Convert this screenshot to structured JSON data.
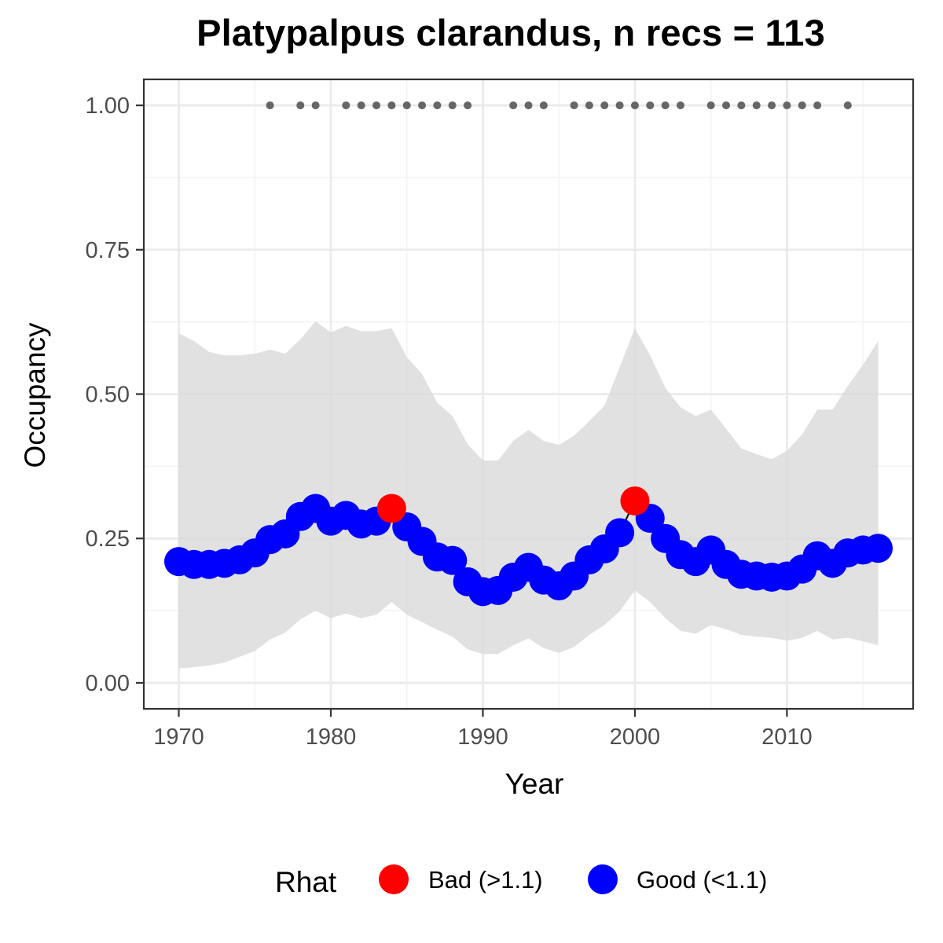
{
  "chart_data": {
    "type": "line",
    "title": "Platypalpus clarandus, n recs = 113",
    "xlabel": "Year",
    "ylabel": "Occupancy",
    "xlim": [
      1967.7,
      2018.3
    ],
    "ylim": [
      -0.045,
      1.045
    ],
    "x_ticks": [
      1970,
      1980,
      1990,
      2000,
      2010
    ],
    "x_tick_labels": [
      "1970",
      "1980",
      "1990",
      "2000",
      "2010"
    ],
    "y_ticks": [
      0,
      0.25,
      0.5,
      0.75,
      1.0
    ],
    "y_tick_labels": [
      "0.00",
      "0.25",
      "0.50",
      "0.75",
      "1.00"
    ],
    "grid": true,
    "legend_position": "bottom",
    "legend": {
      "title": "Rhat",
      "entries": [
        {
          "label": "Bad (>1.1)",
          "color": "#ff0000"
        },
        {
          "label": "Good (<1.1)",
          "color": "#0000ff"
        }
      ]
    },
    "colors": {
      "bad": "#ff0000",
      "good": "#0000ff",
      "ribbon": "#d9d9d9",
      "records": "#666666"
    },
    "years": [
      1970,
      1971,
      1972,
      1973,
      1974,
      1975,
      1976,
      1977,
      1978,
      1979,
      1980,
      1981,
      1982,
      1983,
      1984,
      1985,
      1986,
      1987,
      1988,
      1989,
      1990,
      1991,
      1992,
      1993,
      1994,
      1995,
      1996,
      1997,
      1998,
      1999,
      2000,
      2001,
      2002,
      2003,
      2004,
      2005,
      2006,
      2007,
      2008,
      2009,
      2010,
      2011,
      2012,
      2013,
      2014,
      2015,
      2016
    ],
    "occupancy": [
      0.21,
      0.205,
      0.205,
      0.207,
      0.213,
      0.225,
      0.248,
      0.258,
      0.288,
      0.302,
      0.28,
      0.29,
      0.275,
      0.28,
      0.302,
      0.27,
      0.245,
      0.218,
      0.212,
      0.175,
      0.158,
      0.16,
      0.183,
      0.2,
      0.178,
      0.168,
      0.185,
      0.213,
      0.232,
      0.26,
      0.315,
      0.285,
      0.25,
      0.222,
      0.21,
      0.23,
      0.205,
      0.188,
      0.185,
      0.183,
      0.185,
      0.197,
      0.22,
      0.207,
      0.225,
      0.23,
      0.233
    ],
    "upper": [
      0.605,
      0.592,
      0.573,
      0.567,
      0.567,
      0.57,
      0.577,
      0.57,
      0.595,
      0.626,
      0.607,
      0.618,
      0.609,
      0.609,
      0.614,
      0.564,
      0.535,
      0.485,
      0.462,
      0.413,
      0.385,
      0.385,
      0.419,
      0.438,
      0.419,
      0.412,
      0.428,
      0.453,
      0.48,
      0.547,
      0.614,
      0.567,
      0.511,
      0.477,
      0.462,
      0.473,
      0.44,
      0.406,
      0.396,
      0.387,
      0.402,
      0.43,
      0.473,
      0.473,
      0.514,
      0.551,
      0.592
    ],
    "lower": [
      0.025,
      0.027,
      0.03,
      0.035,
      0.045,
      0.055,
      0.075,
      0.087,
      0.11,
      0.125,
      0.112,
      0.12,
      0.112,
      0.118,
      0.14,
      0.118,
      0.105,
      0.092,
      0.08,
      0.058,
      0.05,
      0.05,
      0.065,
      0.077,
      0.06,
      0.052,
      0.062,
      0.083,
      0.1,
      0.124,
      0.16,
      0.14,
      0.112,
      0.09,
      0.085,
      0.1,
      0.093,
      0.083,
      0.08,
      0.078,
      0.073,
      0.078,
      0.09,
      0.075,
      0.078,
      0.072,
      0.065
    ],
    "rhat": [
      "Good",
      "Good",
      "Good",
      "Good",
      "Good",
      "Good",
      "Good",
      "Good",
      "Good",
      "Good",
      "Good",
      "Good",
      "Good",
      "Good",
      "Bad",
      "Good",
      "Good",
      "Good",
      "Good",
      "Good",
      "Good",
      "Good",
      "Good",
      "Good",
      "Good",
      "Good",
      "Good",
      "Good",
      "Good",
      "Good",
      "Bad",
      "Good",
      "Good",
      "Good",
      "Good",
      "Good",
      "Good",
      "Good",
      "Good",
      "Good",
      "Good",
      "Good",
      "Good",
      "Good",
      "Good",
      "Good",
      "Good"
    ],
    "record_years": [
      1976,
      1978,
      1979,
      1981,
      1982,
      1983,
      1984,
      1985,
      1986,
      1987,
      1988,
      1989,
      1992,
      1993,
      1994,
      1996,
      1997,
      1998,
      1999,
      2000,
      2001,
      2002,
      2003,
      2005,
      2006,
      2007,
      2008,
      2009,
      2010,
      2011,
      2012,
      2014
    ],
    "record_value": 1.0
  }
}
